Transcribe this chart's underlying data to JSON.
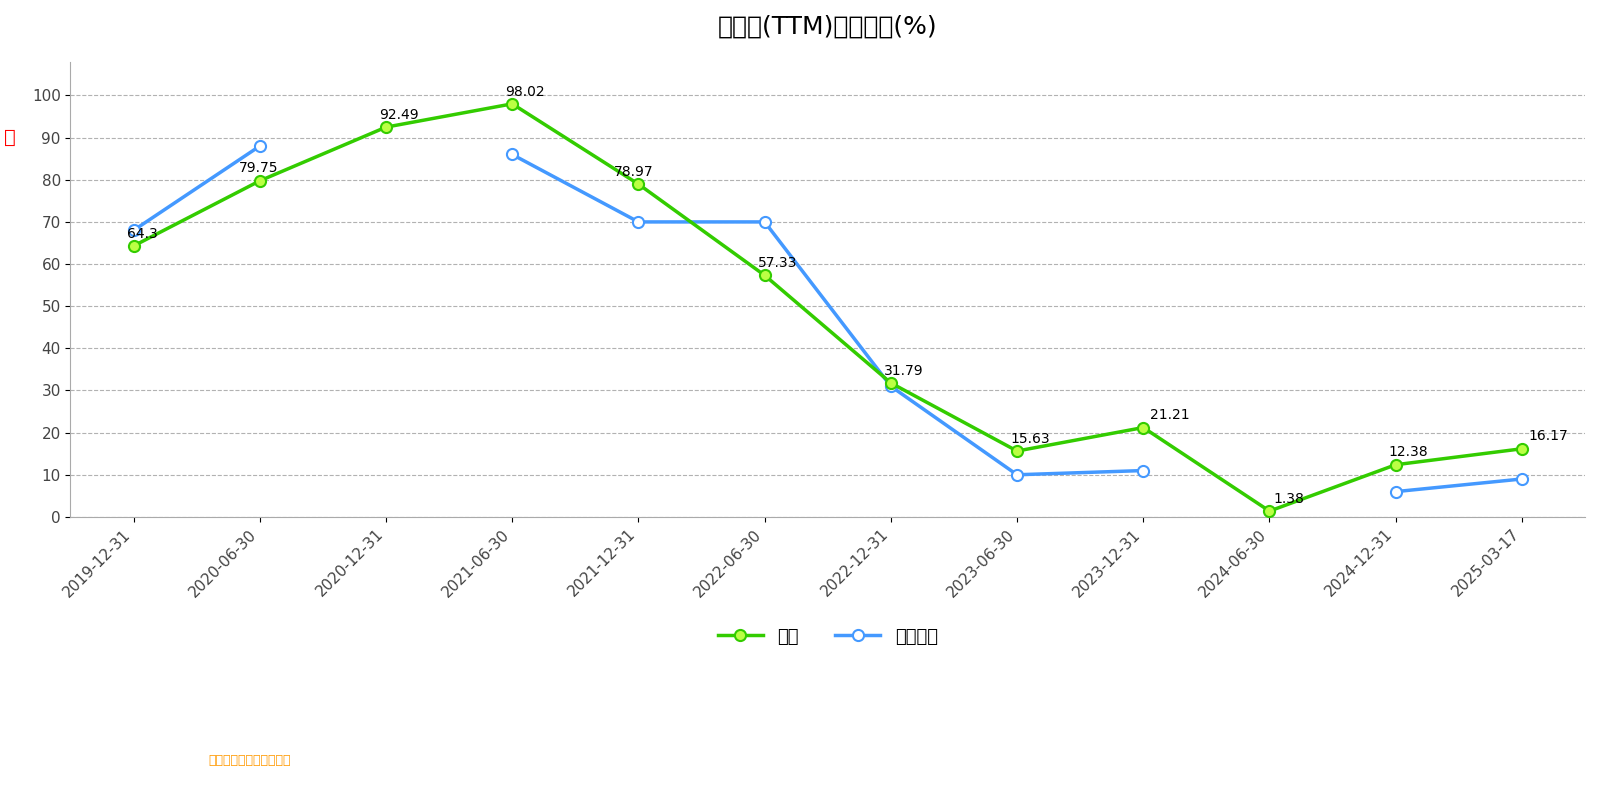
{
  "title": "市销率(TTM)历史分位(%)",
  "company_label": "公司",
  "industry_label": "行业均值",
  "source_text": "数据来自恒生聚源数据库",
  "x_labels": [
    "2019-12-31",
    "2020-06-30",
    "2020-12-31",
    "2021-06-30",
    "2021-12-31",
    "2022-06-30",
    "2022-12-31",
    "2023-06-30",
    "2023-12-31",
    "2024-06-30",
    "2024-12-31",
    "2025-03-17"
  ],
  "company_values": [
    64.3,
    79.75,
    92.49,
    98.02,
    78.97,
    57.33,
    31.79,
    15.63,
    21.21,
    1.38,
    12.38,
    16.17
  ],
  "industry_values": [
    68,
    88,
    null,
    86,
    70,
    70,
    31,
    10,
    11,
    null,
    6,
    9
  ],
  "ylim": [
    0,
    108
  ],
  "yticks": [
    0,
    10,
    20,
    30,
    40,
    50,
    60,
    70,
    80,
    90,
    100
  ],
  "company_color": "#33cc00",
  "industry_color": "#4499ff",
  "bg_color": "#ffffff",
  "title_fontsize": 18,
  "tick_fontsize": 11,
  "annot_fontsize": 10,
  "source_color": "#ff9900",
  "grid_color": "#aaaaaa",
  "red_label_color": "#ff0000",
  "red_label_text": "爱",
  "axis_label_color": "#444444"
}
